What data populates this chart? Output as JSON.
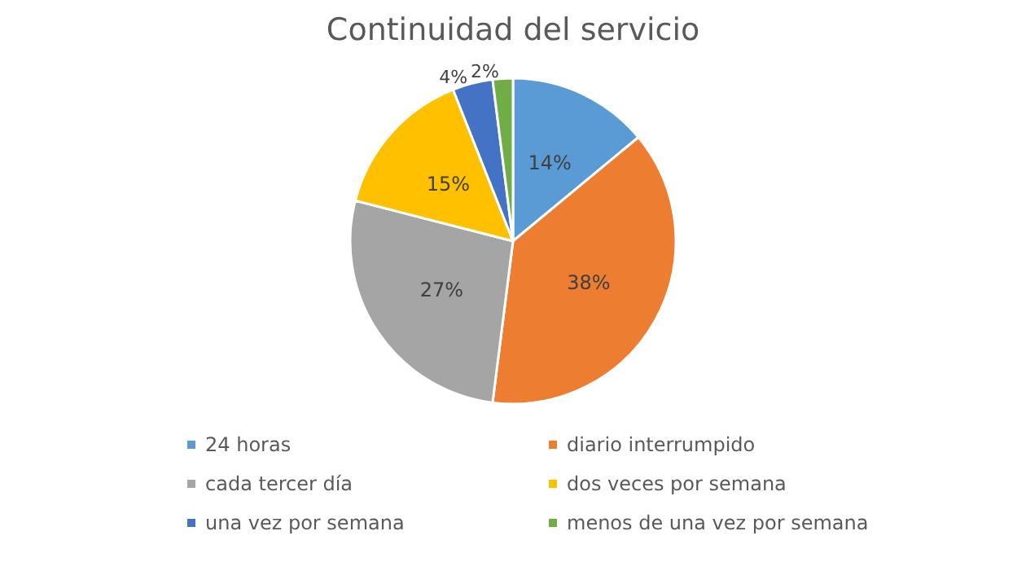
{
  "chart_data": {
    "type": "pie",
    "title": "Continuidad del servicio",
    "categories": [
      "24 horas",
      "diario interrumpido",
      "cada tercer día",
      "dos veces por semana",
      "una vez por semana",
      "menos de una vez por semana"
    ],
    "values": [
      14,
      38,
      27,
      15,
      4,
      2
    ],
    "value_labels": [
      "14%",
      "38%",
      "27%",
      "15%",
      "4%",
      "2%"
    ],
    "colors": [
      "#5b9bd5",
      "#ed7d31",
      "#a5a5a5",
      "#ffc000",
      "#4472c4",
      "#70ad47"
    ],
    "legend": "bottom"
  }
}
